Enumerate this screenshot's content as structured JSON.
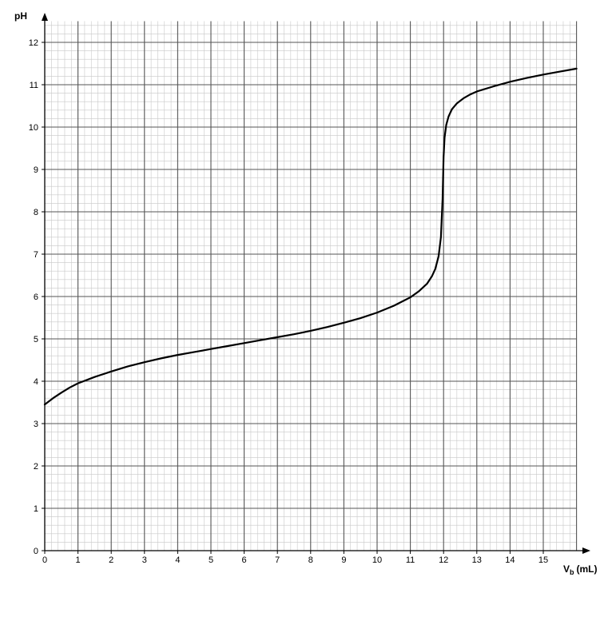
{
  "chart_data": {
    "type": "line",
    "title": "",
    "xlabel": "V",
    "xlabel_sub": "b",
    "xlabel_unit": "(mL)",
    "ylabel": "pH",
    "xlim": [
      0,
      16
    ],
    "ylim": [
      0,
      12.5
    ],
    "x_ticks": [
      "0",
      "1",
      "2",
      "3",
      "4",
      "5",
      "6",
      "7",
      "8",
      "9",
      "10",
      "11",
      "12",
      "13",
      "14",
      "15"
    ],
    "y_ticks": [
      "0",
      "1",
      "2",
      "3",
      "4",
      "5",
      "6",
      "7",
      "8",
      "9",
      "10",
      "11",
      "12"
    ],
    "grid": true,
    "series": [
      {
        "color": "#000000",
        "x": [
          0,
          0.25,
          0.5,
          0.75,
          1,
          1.5,
          2,
          2.5,
          3,
          3.5,
          4,
          4.5,
          5,
          5.5,
          6,
          6.5,
          7,
          7.5,
          8,
          8.5,
          9,
          9.5,
          10,
          10.5,
          11,
          11.25,
          11.5,
          11.65,
          11.75,
          11.85,
          11.92,
          11.97,
          12.0,
          12.03,
          12.08,
          12.15,
          12.25,
          12.4,
          12.6,
          12.8,
          13,
          13.5,
          14,
          14.5,
          15,
          15.5,
          16
        ],
        "y": [
          3.45,
          3.6,
          3.73,
          3.85,
          3.95,
          4.1,
          4.23,
          4.35,
          4.45,
          4.54,
          4.62,
          4.69,
          4.76,
          4.83,
          4.9,
          4.97,
          5.04,
          5.11,
          5.19,
          5.28,
          5.38,
          5.49,
          5.62,
          5.78,
          5.98,
          6.12,
          6.3,
          6.48,
          6.65,
          6.95,
          7.4,
          8.3,
          9.3,
          9.75,
          10.05,
          10.25,
          10.42,
          10.56,
          10.68,
          10.77,
          10.84,
          10.96,
          11.07,
          11.16,
          11.24,
          11.31,
          11.38
        ]
      }
    ]
  }
}
